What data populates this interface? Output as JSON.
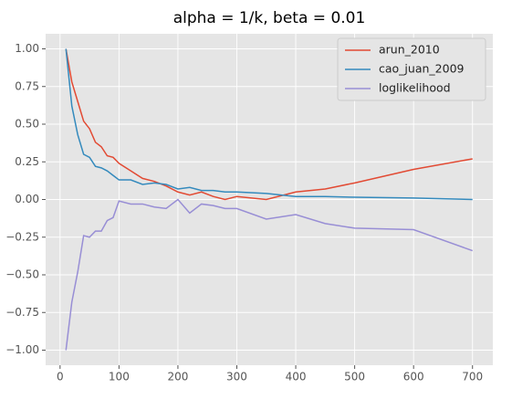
{
  "chart_data": {
    "type": "line",
    "title": "alpha = 1/k, beta = 0.01",
    "x": [
      10,
      20,
      30,
      40,
      50,
      60,
      70,
      80,
      90,
      100,
      120,
      140,
      160,
      180,
      200,
      220,
      240,
      260,
      280,
      300,
      350,
      400,
      450,
      500,
      600,
      700
    ],
    "series": [
      {
        "name": "arun_2010",
        "color": "#E24A33",
        "values": [
          1.0,
          0.78,
          0.65,
          0.52,
          0.47,
          0.38,
          0.35,
          0.29,
          0.28,
          0.24,
          0.19,
          0.14,
          0.12,
          0.09,
          0.05,
          0.03,
          0.05,
          0.02,
          0.0,
          0.02,
          0.0,
          0.05,
          0.07,
          0.11,
          0.2,
          0.27
        ]
      },
      {
        "name": "cao_juan_2009",
        "color": "#348ABD",
        "values": [
          1.0,
          0.62,
          0.43,
          0.3,
          0.28,
          0.22,
          0.21,
          0.19,
          0.16,
          0.13,
          0.13,
          0.1,
          0.11,
          0.1,
          0.07,
          0.08,
          0.06,
          0.06,
          0.05,
          0.05,
          0.04,
          0.02,
          0.02,
          0.015,
          0.01,
          0.0
        ]
      },
      {
        "name": "loglikelihood",
        "color": "#988ED5",
        "values": [
          -1.0,
          -0.68,
          -0.48,
          -0.24,
          -0.25,
          -0.21,
          -0.21,
          -0.14,
          -0.12,
          -0.01,
          -0.03,
          -0.03,
          -0.05,
          -0.06,
          0.0,
          -0.09,
          -0.03,
          -0.04,
          -0.06,
          -0.06,
          -0.13,
          -0.1,
          -0.16,
          -0.19,
          -0.2,
          -0.34
        ]
      }
    ],
    "xlim": [
      -24.5,
      734.5
    ],
    "ylim": [
      -1.1,
      1.1
    ],
    "xticks": [
      0,
      100,
      200,
      300,
      400,
      500,
      600,
      700
    ],
    "yticks": [
      {
        "value": -1,
        "label": "−1.00"
      },
      {
        "value": -0.75,
        "label": "−0.75"
      },
      {
        "value": -0.5,
        "label": "−0.50"
      },
      {
        "value": -0.25,
        "label": "−0.25"
      },
      {
        "value": 0,
        "label": "0.00"
      },
      {
        "value": 0.25,
        "label": "0.25"
      },
      {
        "value": 0.5,
        "label": "0.50"
      },
      {
        "value": 0.75,
        "label": "0.75"
      },
      {
        "value": 1,
        "label": "1.00"
      }
    ],
    "grid": true,
    "legend": "upper right"
  }
}
